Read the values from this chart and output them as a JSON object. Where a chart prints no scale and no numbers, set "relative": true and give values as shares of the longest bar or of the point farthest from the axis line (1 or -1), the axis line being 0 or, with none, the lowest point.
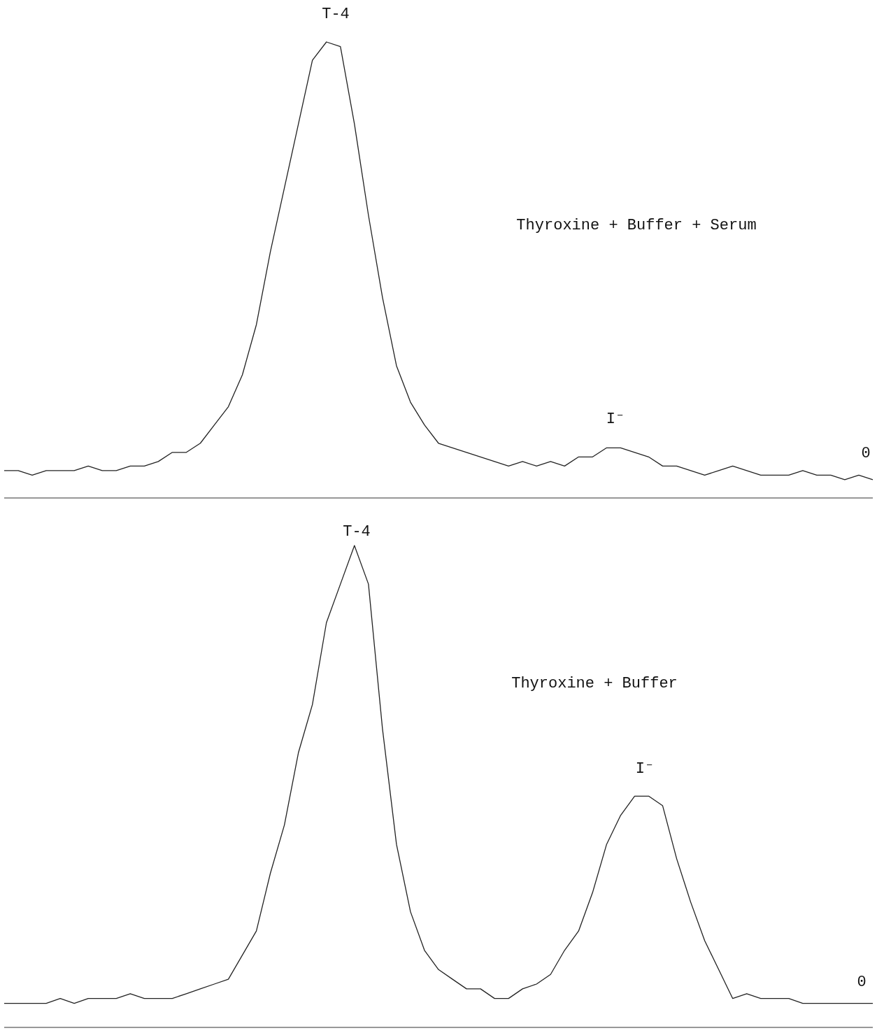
{
  "chart_data": [
    {
      "type": "line",
      "relative": true,
      "color": "#222222",
      "annotations": [
        "T-4",
        "Thyroxine + Buffer + Serum",
        "I⁻",
        "0"
      ],
      "categories": [
        null,
        null,
        null,
        null,
        null,
        null,
        null,
        null,
        null,
        null,
        null,
        null,
        null,
        null,
        null,
        null,
        null,
        null,
        null,
        null,
        null,
        null,
        null,
        null,
        null,
        null,
        null,
        null,
        null,
        null,
        null,
        null,
        null,
        null,
        null,
        null,
        null,
        null,
        null,
        null,
        null,
        null,
        null,
        null,
        null,
        null,
        null,
        null,
        null,
        null,
        null,
        null,
        null,
        null,
        null,
        null,
        null,
        null,
        null,
        null,
        null,
        null,
        null
      ],
      "values": [
        0.06,
        0.06,
        0.05,
        0.06,
        0.06,
        0.06,
        0.07,
        0.06,
        0.06,
        0.07,
        0.07,
        0.08,
        0.1,
        0.1,
        0.12,
        0.16,
        0.2,
        0.27,
        0.38,
        0.54,
        0.68,
        0.82,
        0.96,
        1.0,
        0.99,
        0.82,
        0.62,
        0.44,
        0.29,
        0.21,
        0.16,
        0.12,
        0.11,
        0.1,
        0.09,
        0.08,
        0.07,
        0.08,
        0.07,
        0.08,
        0.07,
        0.09,
        0.09,
        0.11,
        0.11,
        0.1,
        0.09,
        0.07,
        0.07,
        0.06,
        0.05,
        0.06,
        0.07,
        0.06,
        0.05,
        0.05,
        0.05,
        0.06,
        0.05,
        0.05,
        0.04,
        0.05,
        0.04
      ]
    },
    {
      "type": "line",
      "relative": true,
      "color": "#222222",
      "annotations": [
        "T-4",
        "Thyroxine + Buffer",
        "I⁻",
        "0"
      ],
      "categories": [
        null,
        null,
        null,
        null,
        null,
        null,
        null,
        null,
        null,
        null,
        null,
        null,
        null,
        null,
        null,
        null,
        null,
        null,
        null,
        null,
        null,
        null,
        null,
        null,
        null,
        null,
        null,
        null,
        null,
        null,
        null,
        null,
        null,
        null,
        null,
        null,
        null,
        null,
        null,
        null,
        null,
        null,
        null,
        null,
        null,
        null,
        null,
        null,
        null,
        null,
        null,
        null,
        null,
        null,
        null,
        null,
        null,
        null,
        null,
        null,
        null,
        null,
        null
      ],
      "values": [
        0.05,
        0.05,
        0.05,
        0.05,
        0.06,
        0.05,
        0.06,
        0.06,
        0.06,
        0.07,
        0.06,
        0.06,
        0.06,
        0.07,
        0.08,
        0.09,
        0.1,
        0.15,
        0.2,
        0.32,
        0.42,
        0.57,
        0.67,
        0.84,
        0.92,
        1.0,
        0.92,
        0.62,
        0.38,
        0.24,
        0.16,
        0.12,
        0.1,
        0.08,
        0.08,
        0.06,
        0.06,
        0.08,
        0.09,
        0.11,
        0.16,
        0.2,
        0.28,
        0.38,
        0.44,
        0.48,
        0.48,
        0.46,
        0.35,
        0.26,
        0.18,
        0.12,
        0.06,
        0.07,
        0.06,
        0.06,
        0.06,
        0.05,
        0.05,
        0.05,
        0.05,
        0.05,
        0.05
      ]
    }
  ]
}
